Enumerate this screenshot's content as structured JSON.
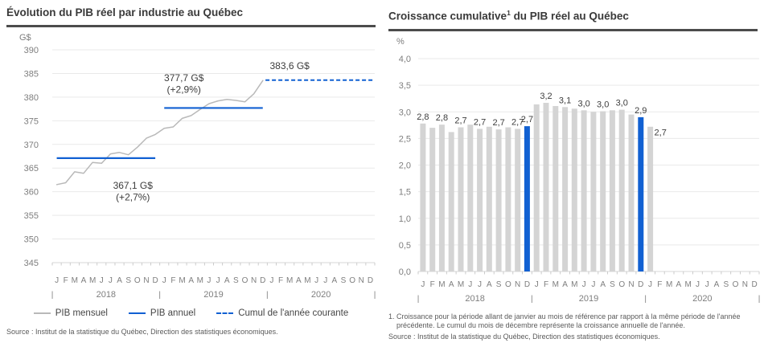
{
  "colors": {
    "accent_blue": "#1160d2",
    "gray_line": "#b9b9b9",
    "gray_bar": "#d4d4d4",
    "grid": "#e9e9e9",
    "baseline": "#d7d7d7",
    "tick": "#c6c6c6",
    "axis_text": "#7e7e7e",
    "title_text": "#3a3a3a",
    "rule": "#4c4c4c",
    "annotation_text": "#3c3c3c",
    "bar_label_text": "#3d3d3d",
    "footnote_text": "#5a5a5a"
  },
  "left": {
    "title": "Évolution du PIB réel par industrie au Québec",
    "unit": "G$",
    "legend": [
      {
        "label": "PIB mensuel",
        "swatch": "gray-line"
      },
      {
        "label": "PIB annuel",
        "swatch": "blue-line"
      },
      {
        "label": "Cumul de l'année courante",
        "swatch": "blue-dashed"
      }
    ],
    "source": "Source : Institut de la statistique du Québec, Direction des statistiques économiques."
  },
  "right": {
    "title_main": "Croissance cumulative",
    "title_sup": "1",
    "title_rest": " du PIB réel au Québec",
    "unit": "%",
    "footnote": "1. Croissance pour la période allant de janvier au mois de référence par rapport à la même période de l'année précédente. Le cumul du mois de décembre représente la croissance annuelle de l'année.",
    "source": "Source : Institut de la statistique du Québec, Direction des statistiques économiques."
  },
  "chart_data": [
    {
      "type": "line",
      "title": "Évolution du PIB réel par industrie au Québec",
      "ylabel": "G$",
      "ylim": [
        345,
        390
      ],
      "yticks": [
        "390",
        "385",
        "380",
        "375",
        "370",
        "365",
        "360",
        "355",
        "350",
        "345"
      ],
      "months": [
        "J",
        "F",
        "M",
        "A",
        "M",
        "J",
        "J",
        "A",
        "S",
        "O",
        "N",
        "D"
      ],
      "years": [
        "2018",
        "2019",
        "2020"
      ],
      "grid": true,
      "legend_position": "bottom",
      "series": [
        {
          "name": "PIB mensuel",
          "kind": "monthly-line",
          "values": [
            361.5,
            361.9,
            364.2,
            363.9,
            366.2,
            366.0,
            368.0,
            368.3,
            367.8,
            369.4,
            371.3,
            372.1,
            373.4,
            373.7,
            375.5,
            376.1,
            377.4,
            378.6,
            379.2,
            379.5,
            379.3,
            379.0,
            380.7,
            383.5
          ]
        },
        {
          "name": "PIB annuel",
          "kind": "annual-segments",
          "segments": [
            {
              "year": "2018",
              "value": 367.1,
              "from_month": 0,
              "to_month": 11
            },
            {
              "year": "2019",
              "value": 377.7,
              "from_month": 12,
              "to_month": 23
            }
          ]
        },
        {
          "name": "Cumul de l'année courante",
          "kind": "dashed-level",
          "value": 383.6,
          "from_month": 23.3,
          "to_month": 36
        }
      ],
      "annotations": [
        {
          "lines": [
            "367,1 G$",
            "(+2,7%)"
          ],
          "month_center": 8.5,
          "value": 360.6
        },
        {
          "lines": [
            "377,7 G$",
            "(+2,9%)"
          ],
          "month_center": 14.2,
          "value": 383.4
        },
        {
          "lines": [
            "383,6 G$"
          ],
          "month_center": 26.0,
          "value": 385.9
        }
      ]
    },
    {
      "type": "bar",
      "title": "Croissance cumulative (1) du PIB réel au Québec",
      "ylabel": "%",
      "ylim": [
        0,
        4
      ],
      "yticks": [
        "4,0",
        "3,5",
        "3,0",
        "2,5",
        "2,0",
        "1,5",
        "1,0",
        "0,5",
        "0,0"
      ],
      "months": [
        "J",
        "F",
        "M",
        "A",
        "M",
        "J",
        "J",
        "A",
        "S",
        "O",
        "N",
        "D"
      ],
      "years": [
        "2018",
        "2019",
        "2020"
      ],
      "grid": true,
      "bars": [
        {
          "month": "J 2018",
          "value": 2.78,
          "label": "2,8"
        },
        {
          "month": "F 2018",
          "value": 2.7
        },
        {
          "month": "M 2018",
          "value": 2.76,
          "label": "2,8"
        },
        {
          "month": "A 2018",
          "value": 2.62
        },
        {
          "month": "M 2018",
          "value": 2.71,
          "label": "2,7"
        },
        {
          "month": "J 2018",
          "value": 2.76
        },
        {
          "month": "J 2018",
          "value": 2.68,
          "label": "2,7"
        },
        {
          "month": "A 2018",
          "value": 2.72
        },
        {
          "month": "S 2018",
          "value": 2.67,
          "label": "2,7"
        },
        {
          "month": "O 2018",
          "value": 2.71
        },
        {
          "month": "N 2018",
          "value": 2.68,
          "label": "2,7"
        },
        {
          "month": "D 2018",
          "value": 2.73,
          "label": "2,7",
          "highlight": true
        },
        {
          "month": "J 2019",
          "value": 3.14
        },
        {
          "month": "F 2019",
          "value": 3.17,
          "label": "3,2"
        },
        {
          "month": "M 2019",
          "value": 3.11
        },
        {
          "month": "A 2019",
          "value": 3.09,
          "label": "3,1"
        },
        {
          "month": "M 2019",
          "value": 3.06
        },
        {
          "month": "J 2019",
          "value": 3.03,
          "label": "3,0"
        },
        {
          "month": "J 2019",
          "value": 3.0
        },
        {
          "month": "A 2019",
          "value": 3.01,
          "label": "3,0"
        },
        {
          "month": "S 2019",
          "value": 3.03
        },
        {
          "month": "O 2019",
          "value": 3.04,
          "label": "3,0"
        },
        {
          "month": "N 2019",
          "value": 2.95
        },
        {
          "month": "D 2019",
          "value": 2.9,
          "label": "2,9",
          "highlight": true
        },
        {
          "month": "J 2020",
          "value": 2.72,
          "label": "2,7",
          "label_pos": "right"
        }
      ]
    }
  ]
}
